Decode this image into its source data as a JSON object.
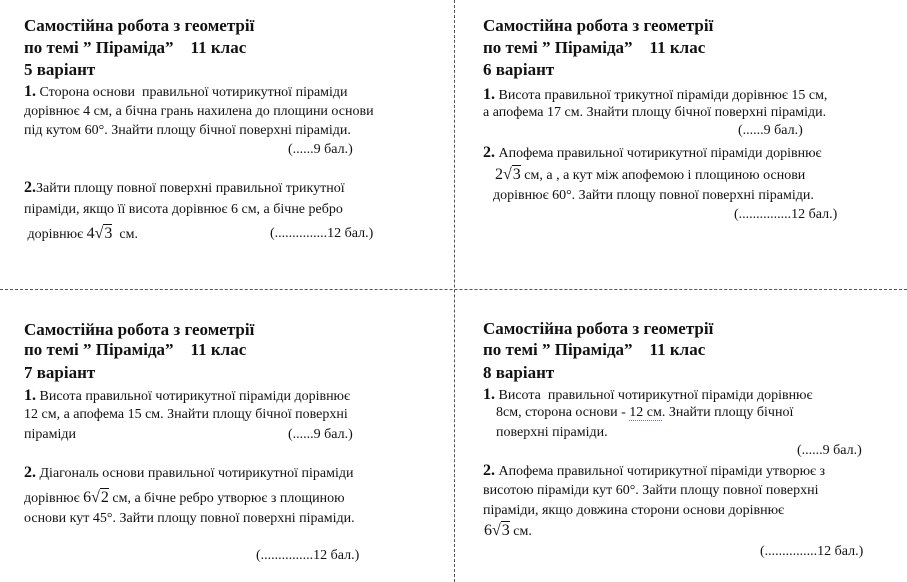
{
  "cards": [
    {
      "title": [
        "Самостійна робота з геометрії",
        "по темі ” Піраміда”    11 клас",
        "5 варіант"
      ],
      "lines": [
        {
          "num": "1.",
          "text": " Сторона основи  правильної чотирикутної піраміди"
        },
        {
          "text": "дорівнює 4 см, а бічна грань нахилена до площини основи"
        },
        {
          "text": "під кутом 60°. Знайти площу бічної поверхні піраміди."
        },
        {
          "text": "(......9 бал.)"
        },
        {
          "num": "2.",
          "text": "Зайти площу повної поверхні правильної трикутної"
        },
        {
          "text": "піраміди, якщо її висота дорівнює 6 см, а бічне ребро"
        },
        {
          "pre": " дорівнює ",
          "coef": "4",
          "rad": "3",
          "post": "  см."
        },
        {
          "text": "(...............12 бал.)"
        }
      ]
    },
    {
      "title": [
        "Самостійна робота з геометрії",
        "по темі ” Піраміда”    11 клас",
        "6 варіант"
      ],
      "lines": [
        {
          "num": "1.",
          "text": " Висота правильної трикутної піраміди дорівнює 15 см,"
        },
        {
          "text": "а апофема 17 см. Знайти площу бічної поверхні піраміди."
        },
        {
          "text": "(......9 бал.)"
        },
        {
          "num": "2.",
          "text": " Апофема правильної чотирикутної піраміди дорівнює"
        },
        {
          "pre": "",
          "coef": "2",
          "rad": "3",
          "post": " см, а , а кут між апофемою і площиною основи"
        },
        {
          "text": "дорівнює 60°. Зайти площу повної поверхні піраміди."
        },
        {
          "text": "(...............12 бал.)"
        }
      ]
    },
    {
      "title": [
        "Самостійна робота з геометрії",
        "по темі ” Піраміда”    11 клас",
        "7 варіант"
      ],
      "lines": [
        {
          "num": "1.",
          "text": " Висота правильної чотирикутної піраміди дорівнює"
        },
        {
          "text": "12 см, а апофема 15 см. Знайти площу бічної поверхні"
        },
        {
          "text": "піраміди"
        },
        {
          "text": "(......9 бал.)"
        },
        {
          "num": "2.",
          "text": " Діагональ основи правильної чотирикутної піраміди"
        },
        {
          "pre": "дорівнює ",
          "coef": "6",
          "rad": "2",
          "post": " см, а бічне ребро утворює з площиною"
        },
        {
          "text": "основи кут 45°. Зайти площу повної поверхні піраміди."
        },
        {
          "text": "(...............12 бал.)"
        }
      ]
    },
    {
      "title": [
        "Самостійна робота з геометрії",
        "по темі ” Піраміда”    11 клас",
        "8 варіант"
      ],
      "lines": [
        {
          "num": "1.",
          "text": " Висота  правильної чотирикутної піраміди дорівнює"
        },
        {
          "text": "8см, сторона основи - ",
          "dotted": "12 см",
          "tail": ". Знайти площу бічної"
        },
        {
          "text": "поверхні піраміди."
        },
        {
          "text": "(......9 бал.)"
        },
        {
          "num": "2.",
          "text": " Апофема правильної чотирикутної піраміди утворює з"
        },
        {
          "text": "висотою піраміди кут 60°. Зайти площу повної поверхні"
        },
        {
          "text": "піраміди, якщо довжина сторони основи дорівнює"
        },
        {
          "pre": "",
          "coef": "6",
          "rad": "3",
          "post": " см."
        },
        {
          "text": "(...............12 бал.)"
        }
      ]
    }
  ]
}
